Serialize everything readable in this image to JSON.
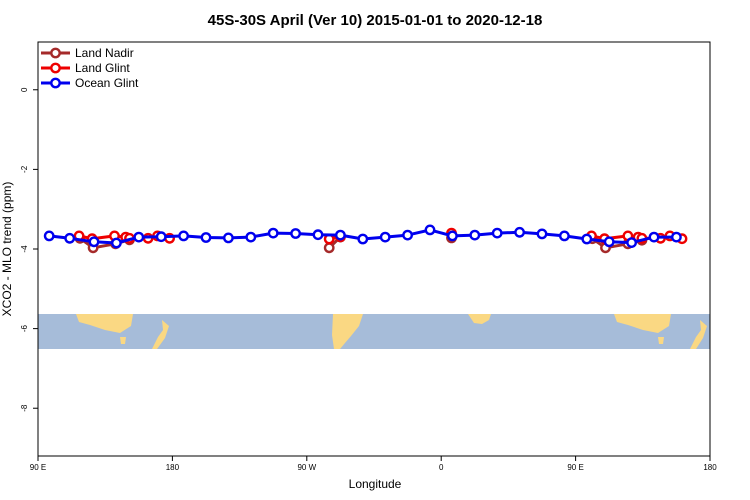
{
  "chart_data": {
    "type": "line",
    "title": "45S-30S April (Ver 10)   2015-01-01 to 2020-12-18",
    "xlabel": "Longitude",
    "ylabel": "XCO2 - MLO trend (ppm)",
    "xlim": [
      90,
      450
    ],
    "ylim": [
      1.2,
      -9.2
    ],
    "y_axis_inverted": true,
    "x_ticks": [
      {
        "value": 90,
        "label": "90 E"
      },
      {
        "value": 162,
        "label": "180"
      },
      {
        "value": 234,
        "label": "90 W"
      },
      {
        "value": 306,
        "label": "0"
      },
      {
        "value": 378,
        "label": "90 E"
      },
      {
        "value": 450,
        "label": "180"
      }
    ],
    "y_ticks": [
      {
        "value": 0,
        "label": "0"
      },
      {
        "value": -2,
        "label": "-2"
      },
      {
        "value": -4,
        "label": "-4"
      },
      {
        "value": -6,
        "label": "-6"
      },
      {
        "value": -8,
        "label": "-8"
      }
    ],
    "legend_position": "top-left",
    "grid": false,
    "series": [
      {
        "name": "Land Nadir",
        "color": "#a52a2a",
        "points": [
          [
            112.5,
            -3.73
          ],
          [
            119.5,
            -3.97
          ],
          [
            131.5,
            -3.87
          ],
          [
            139,
            -3.77
          ]
        ]
      },
      {
        "name": "Land Nadir",
        "color": "#a52a2a",
        "points": [
          [
            246,
            -3.97
          ],
          [
            252,
            -3.7
          ]
        ]
      },
      {
        "name": "Land Nadir",
        "color": "#a52a2a",
        "points": [
          [
            311.5,
            -3.72
          ]
        ]
      },
      {
        "name": "Land Nadir",
        "color": "#a52a2a",
        "points": [
          [
            387,
            -3.74
          ],
          [
            394,
            -3.97
          ],
          [
            406,
            -3.87
          ],
          [
            413.5,
            -3.78
          ]
        ]
      },
      {
        "name": "Land Glint",
        "color": "#ee0000",
        "points": [
          [
            112,
            -3.67
          ],
          [
            119,
            -3.74
          ],
          [
            131,
            -3.67
          ],
          [
            137,
            -3.7
          ],
          [
            139,
            -3.73
          ],
          [
            149,
            -3.73
          ],
          [
            154,
            -3.67
          ],
          [
            160.5,
            -3.73
          ]
        ]
      },
      {
        "name": "Land Glint",
        "color": "#ee0000",
        "points": [
          [
            246,
            -3.75
          ],
          [
            252,
            -3.69
          ]
        ]
      },
      {
        "name": "Land Glint",
        "color": "#ee0000",
        "points": [
          [
            311.5,
            -3.6
          ]
        ]
      },
      {
        "name": "Land Glint",
        "color": "#ee0000",
        "points": [
          [
            386.5,
            -3.67
          ],
          [
            393.5,
            -3.74
          ],
          [
            406,
            -3.67
          ],
          [
            411.5,
            -3.7
          ],
          [
            413.5,
            -3.73
          ],
          [
            423.5,
            -3.73
          ],
          [
            428.5,
            -3.67
          ],
          [
            435,
            -3.74
          ]
        ]
      },
      {
        "name": "Ocean Glint",
        "color": "#0000ee",
        "points": [
          [
            96,
            -3.67
          ],
          [
            107,
            -3.73
          ],
          [
            120,
            -3.82
          ],
          [
            132,
            -3.85
          ],
          [
            144,
            -3.7
          ],
          [
            156,
            -3.69
          ],
          [
            168,
            -3.67
          ],
          [
            180,
            -3.71
          ],
          [
            192,
            -3.72
          ],
          [
            204,
            -3.7
          ],
          [
            216,
            -3.6
          ],
          [
            228,
            -3.61
          ],
          [
            240,
            -3.64
          ],
          [
            252,
            -3.65
          ],
          [
            264,
            -3.75
          ],
          [
            276,
            -3.7
          ],
          [
            288,
            -3.65
          ],
          [
            300,
            -3.52
          ],
          [
            312,
            -3.67
          ],
          [
            324,
            -3.65
          ],
          [
            336,
            -3.6
          ],
          [
            348,
            -3.58
          ],
          [
            360,
            -3.62
          ],
          [
            372,
            -3.67
          ],
          [
            384,
            -3.75
          ],
          [
            396,
            -3.82
          ],
          [
            408,
            -3.84
          ],
          [
            420,
            -3.7
          ],
          [
            432,
            -3.7
          ]
        ]
      }
    ]
  }
}
